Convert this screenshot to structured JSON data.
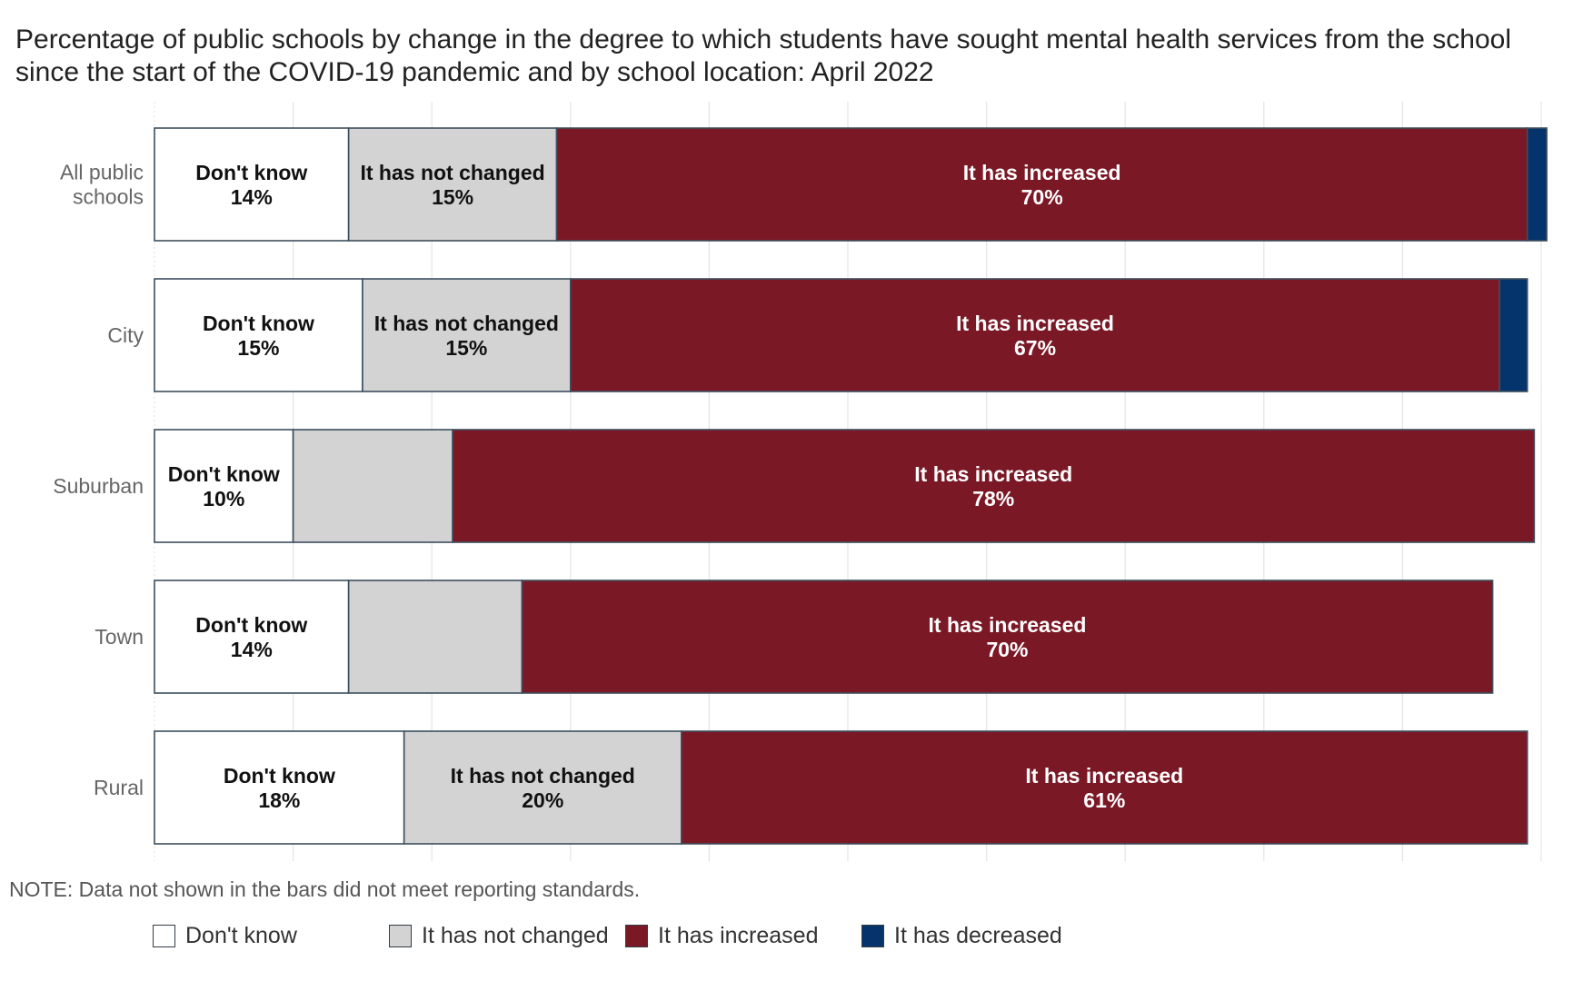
{
  "title": "Percentage of public schools by change in the degree to which students have sought mental health services from the school since the start of the COVID-19 pandemic and by school location: April 2022",
  "note": "NOTE: Data not shown in the bars did not meet reporting standards.",
  "colors": {
    "dont_know": "#ffffff",
    "not_changed": "#d3d3d3",
    "increased": "#7b1826",
    "decreased": "#05336b",
    "bar_border": "#3d4f5e",
    "grid": "#e6e6e6"
  },
  "legend": [
    {
      "label": "Don't know",
      "color": "#ffffff"
    },
    {
      "label": "It has not changed",
      "color": "#d3d3d3"
    },
    {
      "label": "It has increased",
      "color": "#7b1826"
    },
    {
      "label": "It has decreased",
      "color": "#05336b"
    }
  ],
  "chart_data": {
    "type": "bar",
    "orientation": "horizontal",
    "stacked": true,
    "xlim": [
      0,
      100
    ],
    "grid": true,
    "legend_position": "bottom",
    "categories": [
      [
        "All public",
        "schools"
      ],
      [
        "City"
      ],
      [
        "Suburban"
      ],
      [
        "Town"
      ],
      [
        "Rural"
      ]
    ],
    "series": [
      {
        "name": "Don't know",
        "key": "dont_know",
        "values": [
          14,
          15,
          10,
          14,
          18
        ],
        "labels": [
          "Don't know|14%",
          "Don't know|15%",
          "Don't know|10%",
          "Don't know|14%",
          "Don't know|18%"
        ]
      },
      {
        "name": "It has not changed",
        "key": "not_changed",
        "values": [
          15,
          15,
          11.5,
          12.5,
          20
        ],
        "labels": [
          "It has not changed|15%",
          "It has not changed|15%",
          "",
          "",
          "It has not changed|20%"
        ]
      },
      {
        "name": "It has increased",
        "key": "increased",
        "values": [
          70,
          67,
          78,
          70,
          61
        ],
        "labels": [
          "It has increased|70%",
          "It has increased|67%",
          "It has increased|78%",
          "It has increased|70%",
          "It has increased|61%"
        ]
      },
      {
        "name": "It has decreased",
        "key": "decreased",
        "values": [
          1.4,
          2,
          0,
          0,
          0
        ],
        "labels": [
          "",
          "",
          "",
          "",
          ""
        ]
      }
    ]
  }
}
